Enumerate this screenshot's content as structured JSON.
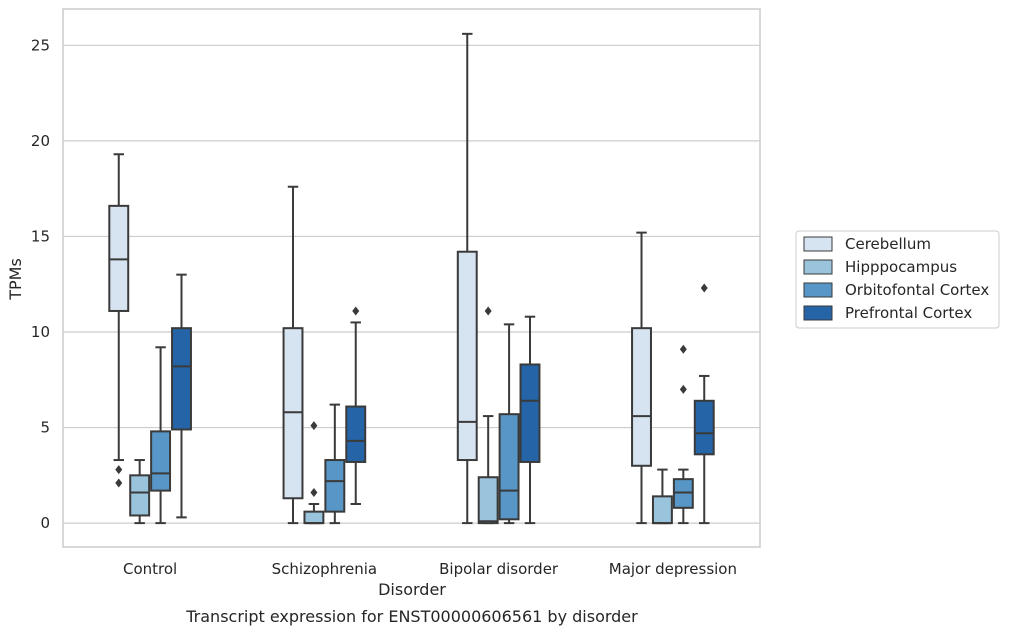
{
  "chart_data": {
    "type": "box",
    "caption": "Transcript expression for ENST00000606561 by disorder",
    "xlabel": "Disorder",
    "ylabel": "TPMs",
    "ylim": [
      -1.25,
      26.9
    ],
    "yticks": [
      0,
      5,
      10,
      15,
      20,
      25
    ],
    "grid": "horizontal",
    "legend_position": "right",
    "categories": [
      "Control",
      "Schizophrenia",
      "Bipolar disorder",
      "Major depression"
    ],
    "series": [
      {
        "name": "Cerebellum",
        "color": "#d6e3f1",
        "boxes": [
          {
            "whisker_low": 3.3,
            "q1": 11.1,
            "median": 13.8,
            "q3": 16.6,
            "whisker_high": 19.3,
            "outliers": [
              2.8,
              2.1
            ]
          },
          {
            "whisker_low": 0.0,
            "q1": 1.3,
            "median": 5.8,
            "q3": 10.2,
            "whisker_high": 17.6,
            "outliers": []
          },
          {
            "whisker_low": 0.0,
            "q1": 3.3,
            "median": 5.3,
            "q3": 14.2,
            "whisker_high": 25.6,
            "outliers": []
          },
          {
            "whisker_low": 0.0,
            "q1": 3.0,
            "median": 5.6,
            "q3": 10.2,
            "whisker_high": 15.2,
            "outliers": []
          }
        ]
      },
      {
        "name": "Hipppocampus",
        "color": "#9ac3dc",
        "boxes": [
          {
            "whisker_low": 0.0,
            "q1": 0.4,
            "median": 1.6,
            "q3": 2.5,
            "whisker_high": 3.3,
            "outliers": []
          },
          {
            "whisker_low": 0.0,
            "q1": 0.0,
            "median": 0.0,
            "q3": 0.6,
            "whisker_high": 1.0,
            "outliers": [
              5.1,
              1.6
            ]
          },
          {
            "whisker_low": 0.0,
            "q1": 0.0,
            "median": 0.1,
            "q3": 2.4,
            "whisker_high": 5.6,
            "outliers": [
              11.1
            ]
          },
          {
            "whisker_low": 0.0,
            "q1": 0.0,
            "median": 0.0,
            "q3": 1.4,
            "whisker_high": 2.8,
            "outliers": []
          }
        ]
      },
      {
        "name": "Orbitofontal Cortex",
        "color": "#5796c6",
        "boxes": [
          {
            "whisker_low": 0.0,
            "q1": 1.7,
            "median": 2.6,
            "q3": 4.8,
            "whisker_high": 9.2,
            "outliers": []
          },
          {
            "whisker_low": 0.0,
            "q1": 0.6,
            "median": 2.2,
            "q3": 3.3,
            "whisker_high": 6.2,
            "outliers": []
          },
          {
            "whisker_low": 0.0,
            "q1": 0.2,
            "median": 1.7,
            "q3": 5.7,
            "whisker_high": 10.4,
            "outliers": []
          },
          {
            "whisker_low": 0.0,
            "q1": 0.8,
            "median": 1.6,
            "q3": 2.3,
            "whisker_high": 2.8,
            "outliers": [
              9.1,
              7.0
            ]
          }
        ]
      },
      {
        "name": "Prefrontal Cortex",
        "color": "#2464a7",
        "boxes": [
          {
            "whisker_low": 0.3,
            "q1": 4.9,
            "median": 8.2,
            "q3": 10.2,
            "whisker_high": 13.0,
            "outliers": []
          },
          {
            "whisker_low": 1.0,
            "q1": 3.2,
            "median": 4.3,
            "q3": 6.1,
            "whisker_high": 10.5,
            "outliers": [
              11.1
            ]
          },
          {
            "whisker_low": 0.0,
            "q1": 3.2,
            "median": 6.4,
            "q3": 8.3,
            "whisker_high": 10.8,
            "outliers": []
          },
          {
            "whisker_low": 0.0,
            "q1": 3.6,
            "median": 4.7,
            "q3": 6.4,
            "whisker_high": 7.7,
            "outliers": [
              12.3
            ]
          }
        ]
      }
    ]
  }
}
